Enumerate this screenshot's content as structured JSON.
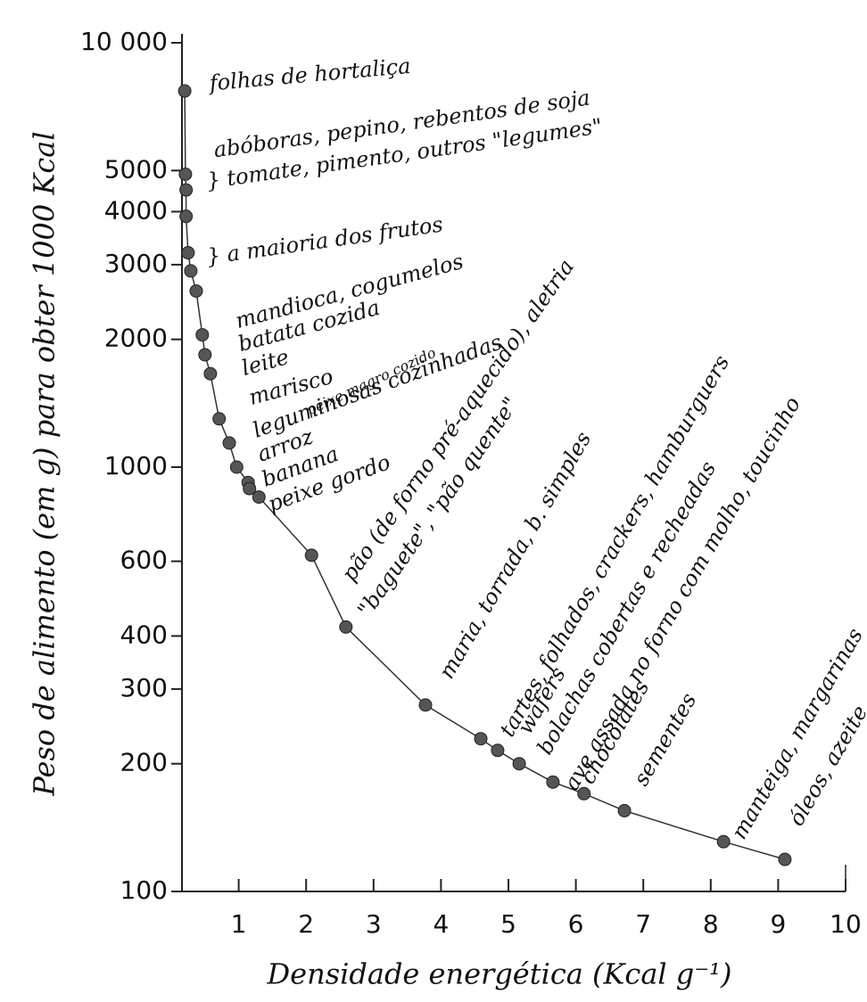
{
  "chart_data": {
    "type": "scatter",
    "x_label": "Densidade energética (Kcal g⁻¹)",
    "y_label": "Peso de alimento (em g) para obter 1000 Kcal",
    "xlim": [
      0,
      10
    ],
    "xticks": [
      1,
      2,
      3,
      4,
      5,
      6,
      7,
      8,
      9,
      10
    ],
    "ylim": [
      100,
      10000
    ],
    "log_y": true,
    "yticks": [
      {
        "value": 10000,
        "label": "10 000"
      },
      5000,
      4000,
      3000,
      2000,
      1000,
      600,
      400,
      300,
      200,
      100
    ],
    "series": [
      {
        "color": "#555555",
        "x": [
          0.2,
          0.21,
          0.22,
          0.22,
          0.25,
          0.29,
          0.37,
          0.46,
          0.5,
          0.58,
          0.71,
          0.86,
          0.97,
          1.14,
          1.16,
          1.3,
          2.08,
          2.59,
          3.77,
          4.59,
          4.84,
          5.16,
          5.66,
          6.12,
          6.72,
          8.19,
          9.1
        ],
        "values": [
          7700,
          4900,
          4500,
          3900,
          3200,
          2900,
          2600,
          2050,
          1840,
          1660,
          1300,
          1140,
          1000,
          920,
          890,
          850,
          620,
          420,
          275,
          229,
          215,
          200,
          181,
          170,
          155,
          131,
          119
        ]
      }
    ],
    "annotations": [
      "folhas de hortaliça",
      "abóboras, pepino, rebentos de soja",
      "} tomate, pimento, outros \"legumes\"",
      "} a maioria dos frutos",
      "mandioca, cogumelos",
      "batata cozida",
      "leite",
      "marisco",
      "leguminosas cozinhadas",
      "peixe magro cozido",
      "arroz",
      "banana",
      "peixe gordo",
      "pão (de forno pré-aquecido), aletria",
      "\"baguete\", \"pão quente\"",
      "maria, torrada, b. simples",
      "tartes, folhados, crackers, hamburguers",
      "wafers",
      "bolachas cobertas e recheadas",
      "ave assada no forno com molho, toucinho",
      "chocolates",
      "sementes",
      "manteiga, margarinas",
      "óleos, azeite"
    ]
  }
}
